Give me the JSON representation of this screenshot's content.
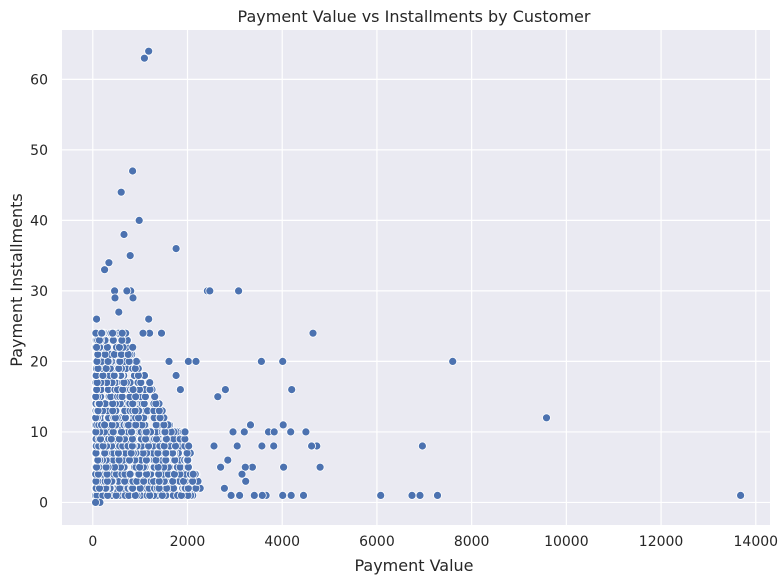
{
  "colors": {
    "plot_background": "#eaeaf2",
    "grid": "#ffffff",
    "point_fill": "#4c72b0",
    "point_edge": "#ffffff",
    "text": "#262626"
  },
  "chart_data": {
    "type": "scatter",
    "title": "Payment Value vs Installments by Customer",
    "xlabel": "Payment Value",
    "ylabel": "Payment Installments",
    "xlim": [
      -650,
      14300
    ],
    "ylim": [
      -3.2,
      67
    ],
    "xticks": [
      0,
      2000,
      4000,
      6000,
      8000,
      10000,
      12000,
      14000
    ],
    "yticks": [
      0,
      10,
      20,
      30,
      40,
      50,
      60
    ],
    "grid": true,
    "legend": "none",
    "series": [
      {
        "points": [
          {
            "x": 1180,
            "y": 64
          },
          {
            "x": 1090,
            "y": 63
          },
          {
            "x": 840,
            "y": 47
          },
          {
            "x": 600,
            "y": 44
          },
          {
            "x": 980,
            "y": 40
          },
          {
            "x": 660,
            "y": 38
          },
          {
            "x": 1760,
            "y": 36
          },
          {
            "x": 790,
            "y": 35
          },
          {
            "x": 340,
            "y": 34
          },
          {
            "x": 250,
            "y": 33
          },
          {
            "x": 3080,
            "y": 30
          },
          {
            "x": 2420,
            "y": 30
          },
          {
            "x": 2470,
            "y": 30
          },
          {
            "x": 800,
            "y": 30
          },
          {
            "x": 720,
            "y": 30
          },
          {
            "x": 460,
            "y": 30
          },
          {
            "x": 850,
            "y": 29
          },
          {
            "x": 470,
            "y": 29
          },
          {
            "x": 550,
            "y": 27
          },
          {
            "x": 4650,
            "y": 24
          },
          {
            "x": 1450,
            "y": 24
          },
          {
            "x": 1200,
            "y": 24
          },
          {
            "x": 1060,
            "y": 24
          },
          {
            "x": 80,
            "y": 26
          },
          {
            "x": 1180,
            "y": 26
          },
          {
            "x": 7600,
            "y": 20
          },
          {
            "x": 4010,
            "y": 20
          },
          {
            "x": 3560,
            "y": 20
          },
          {
            "x": 2020,
            "y": 20
          },
          {
            "x": 2180,
            "y": 20
          },
          {
            "x": 1610,
            "y": 20
          },
          {
            "x": 80,
            "y": 22
          },
          {
            "x": 1760,
            "y": 18
          },
          {
            "x": 1850,
            "y": 16
          },
          {
            "x": 2800,
            "y": 16
          },
          {
            "x": 4200,
            "y": 16
          },
          {
            "x": 2640,
            "y": 15
          },
          {
            "x": 9580,
            "y": 12
          },
          {
            "x": 3330,
            "y": 11
          },
          {
            "x": 4020,
            "y": 11
          },
          {
            "x": 6960,
            "y": 8
          },
          {
            "x": 4730,
            "y": 8
          },
          {
            "x": 4620,
            "y": 8
          },
          {
            "x": 3710,
            "y": 10
          },
          {
            "x": 3830,
            "y": 10
          },
          {
            "x": 4180,
            "y": 10
          },
          {
            "x": 4500,
            "y": 10
          },
          {
            "x": 3820,
            "y": 8
          },
          {
            "x": 3570,
            "y": 8
          },
          {
            "x": 4800,
            "y": 5
          },
          {
            "x": 4030,
            "y": 5
          },
          {
            "x": 3370,
            "y": 5
          },
          {
            "x": 3220,
            "y": 5
          },
          {
            "x": 13680,
            "y": 1
          },
          {
            "x": 7280,
            "y": 1
          },
          {
            "x": 6910,
            "y": 1
          },
          {
            "x": 6740,
            "y": 1
          },
          {
            "x": 6080,
            "y": 1
          },
          {
            "x": 4450,
            "y": 1
          },
          {
            "x": 4190,
            "y": 1
          },
          {
            "x": 4010,
            "y": 1
          },
          {
            "x": 3660,
            "y": 1
          },
          {
            "x": 3580,
            "y": 1
          },
          {
            "x": 3410,
            "y": 1
          },
          {
            "x": 3100,
            "y": 1
          },
          {
            "x": 2920,
            "y": 1
          },
          {
            "x": 2780,
            "y": 2
          },
          {
            "x": 3230,
            "y": 3
          },
          {
            "x": 3150,
            "y": 4
          },
          {
            "x": 2850,
            "y": 6
          },
          {
            "x": 2700,
            "y": 5
          },
          {
            "x": 2560,
            "y": 8
          },
          {
            "x": 2960,
            "y": 10
          },
          {
            "x": 3200,
            "y": 10
          },
          {
            "x": 3050,
            "y": 8
          },
          {
            "x": 150,
            "y": 0
          },
          {
            "x": 60,
            "y": 0
          }
        ]
      }
    ]
  }
}
